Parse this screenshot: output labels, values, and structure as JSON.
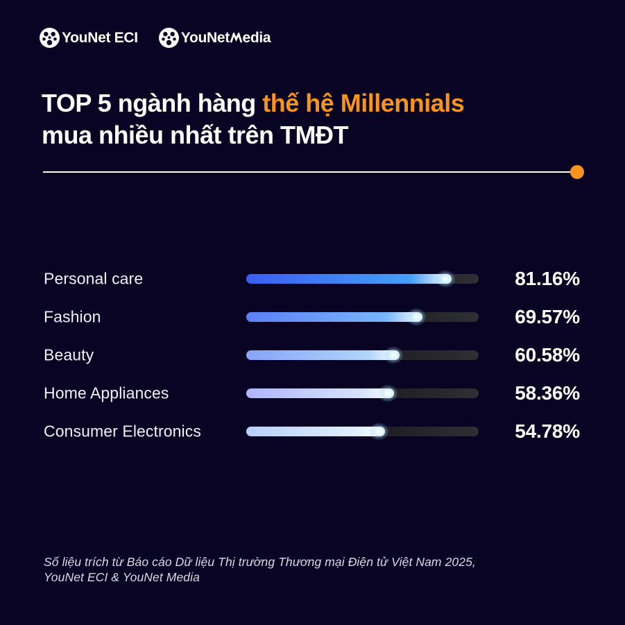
{
  "background_color": "#0a0424",
  "accent_color": "#f7941d",
  "header": {
    "logos": [
      {
        "label": "YouNet ECI"
      },
      {
        "label_prefix": "YouNet",
        "label_suffix": "edia",
        "stylized_m": true
      }
    ]
  },
  "title": {
    "line1_white": "TOP 5 ngành hàng ",
    "line1_orange": "thế hệ Millennials",
    "line2_white": "mua nhiều nhất trên TMĐT"
  },
  "chart_data": {
    "type": "bar",
    "orientation": "horizontal",
    "title": "TOP 5 ngành hàng thế hệ Millennials mua nhiều nhất trên TMĐT",
    "categories": [
      "Personal care",
      "Fashion",
      "Beauty",
      "Home Appliances",
      "Consumer Electronics"
    ],
    "values": [
      81.16,
      69.57,
      60.58,
      58.36,
      54.78
    ],
    "display_values": [
      "81.16%",
      "69.57%",
      "60.58%",
      "58.36%",
      "54.78%"
    ],
    "unit": "%",
    "xlim": [
      0,
      100
    ],
    "grid": false,
    "legend": false,
    "track_color": "#1c1c21",
    "bar_colors": [
      [
        "#3b5ef2",
        "#45a0f8"
      ],
      [
        "#5b80f6",
        "#79b6fa"
      ],
      [
        "#86a3f6",
        "#b0d6fb"
      ],
      [
        "#aeb6fa",
        "#d6e4fd"
      ],
      [
        "#b9d0fa",
        "#e0f0fe"
      ]
    ],
    "bar_width_scale": 1.09
  },
  "footer": {
    "line1": "Số liệu trích từ Báo cáo Dữ liệu Thị trường Thương mại Điện tử Việt Nam 2025,",
    "line2": "YouNet ECI & YouNet Media"
  }
}
